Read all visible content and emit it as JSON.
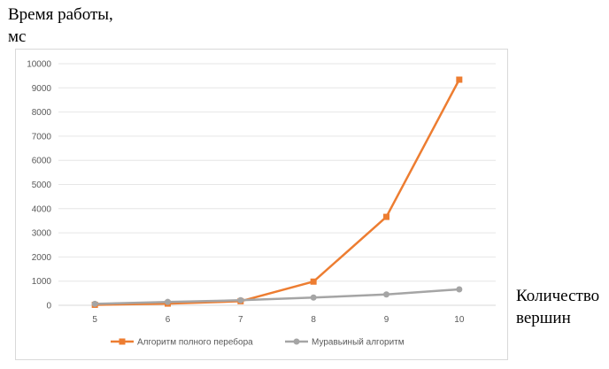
{
  "labels": {
    "y_axis": "Время работы,\nмс",
    "x_axis": "Количество\nвершин"
  },
  "chart_data": {
    "type": "line",
    "x": [
      5,
      6,
      7,
      8,
      9,
      10
    ],
    "ylim": [
      0,
      10000
    ],
    "yticks": [
      0,
      1000,
      2000,
      3000,
      4000,
      5000,
      6000,
      7000,
      8000,
      9000,
      10000
    ],
    "grid": true,
    "legend_position": "bottom",
    "series": [
      {
        "name": "Алгоритм полного перебора",
        "color": "#ED7D31",
        "marker": "square",
        "values": [
          20,
          70,
          170,
          980,
          3660,
          9340
        ]
      },
      {
        "name": "Муравьиный алгоритм",
        "color": "#A5A5A5",
        "marker": "circle",
        "values": [
          60,
          140,
          210,
          320,
          450,
          660
        ]
      }
    ]
  }
}
